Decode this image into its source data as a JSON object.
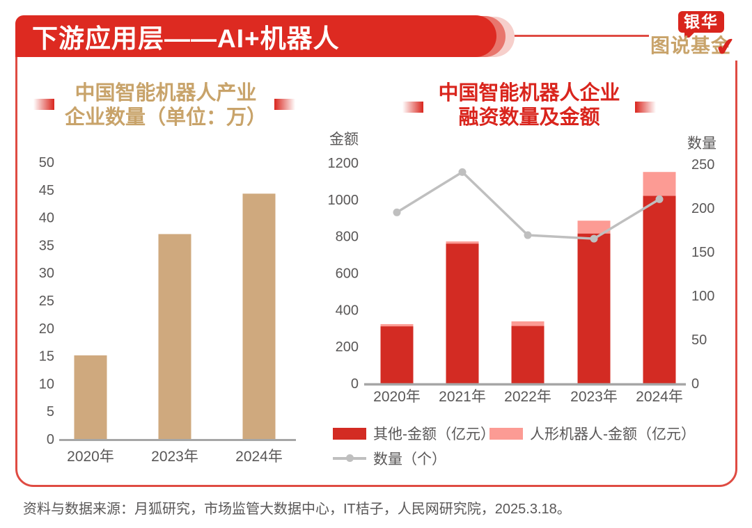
{
  "banner": {
    "title": "下游应用层——AI+机器人"
  },
  "logo": {
    "line1": "银华",
    "line2": "图说基金",
    "checkmark": "✔"
  },
  "footer": {
    "text": "资料与数据来源：月狐研究，市场监管大数据中心，IT桔子，人民网研究院，2025.3.18。"
  },
  "colors": {
    "banner_red": "#dd2a21",
    "frame_red": "#df4b42",
    "title_gold": "#c8a36a",
    "title_red": "#d9251d",
    "tan_bar": "#cfa97e",
    "red_bar": "#d32b23",
    "pink_bar": "#fc9b94",
    "line_gray": "#bfbfbf",
    "axis_text": "#595757",
    "axis_line": "#a6a6a6"
  },
  "chart_data": [
    {
      "type": "bar",
      "title": "中国智能机器人产业企业数量（单位：万）",
      "title_lines": [
        "中国智能机器人产业",
        "企业数量（单位：万）"
      ],
      "categories": [
        "2020年",
        "2023年",
        "2024年"
      ],
      "values": [
        15.1,
        37,
        44.3
      ],
      "ylim": [
        0,
        50
      ],
      "ytick_step": 5,
      "bar_color": "#cfa97e",
      "grid": false,
      "legend": "none"
    },
    {
      "type": "bar",
      "subtype": "stacked-bars-with-line-dual-axis",
      "title": "中国智能机器人企业融资数量及金额",
      "title_lines": [
        "中国智能机器人企业",
        "融资数量及金额"
      ],
      "categories": [
        "2020年",
        "2021年",
        "2022年",
        "2023年",
        "2024年"
      ],
      "series": [
        {
          "name": "其他-金额（亿元）",
          "type": "bar",
          "stack": true,
          "axis": "left",
          "values": [
            310,
            760,
            312,
            815,
            1020
          ],
          "color": "#d32b23"
        },
        {
          "name": "人形机器人-金额（亿元）",
          "type": "bar",
          "stack": true,
          "axis": "left",
          "values": [
            12,
            12,
            25,
            70,
            130
          ],
          "color": "#fc9b94"
        },
        {
          "name": "数量（个）",
          "type": "line",
          "axis": "right",
          "values": [
            195,
            241,
            169,
            165,
            210
          ],
          "color": "#bfbfbf"
        }
      ],
      "left_axis": {
        "label": "金额",
        "lim": [
          0,
          1200
        ],
        "step": 200
      },
      "right_axis": {
        "label": "数量",
        "lim": [
          0,
          250
        ],
        "step": 50
      },
      "grid": false,
      "legend_position": "bottom"
    }
  ]
}
